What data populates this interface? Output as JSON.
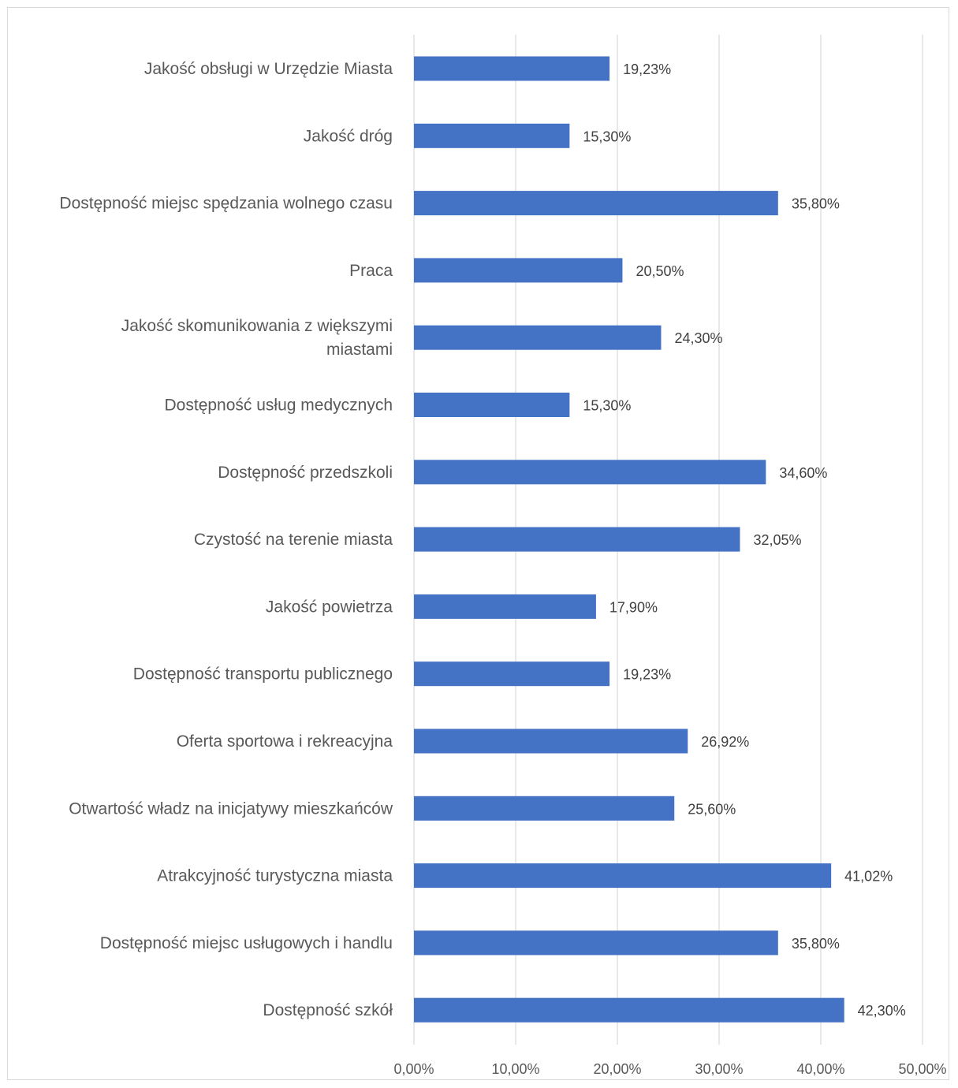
{
  "chart_data": {
    "type": "bar",
    "orientation": "horizontal",
    "categories": [
      [
        "Jakość obsługi w Urzędzie Miasta"
      ],
      [
        "Jakość dróg"
      ],
      [
        "Dostępność miejsc spędzania wolnego czasu"
      ],
      [
        "Praca"
      ],
      [
        "Jakość skomunikowania z większymi",
        "miastami"
      ],
      [
        "Dostępność usług medycznych"
      ],
      [
        "Dostępność przedszkoli"
      ],
      [
        "Czystość na terenie miasta"
      ],
      [
        "Jakość powietrza"
      ],
      [
        "Dostępność transportu publicznego"
      ],
      [
        "Oferta sportowa i rekreacyjna"
      ],
      [
        "Otwartość władz na inicjatywy mieszkańców"
      ],
      [
        "Atrakcyjność turystyczna miasta"
      ],
      [
        "Dostępność miejsc usługowych i handlu"
      ],
      [
        "Dostępność szkół"
      ]
    ],
    "values": [
      19.23,
      15.3,
      35.8,
      20.5,
      24.3,
      15.3,
      34.6,
      32.05,
      17.9,
      19.23,
      26.92,
      25.6,
      41.02,
      35.8,
      42.3
    ],
    "value_labels": [
      "19,23%",
      "15,30%",
      "35,80%",
      "20,50%",
      "24,30%",
      "15,30%",
      "34,60%",
      "32,05%",
      "17,90%",
      "19,23%",
      "26,92%",
      "25,60%",
      "41,02%",
      "35,80%",
      "42,30%"
    ],
    "x_ticks": [
      0,
      10,
      20,
      30,
      40,
      50
    ],
    "x_tick_labels": [
      "0,00%",
      "10,00%",
      "20,00%",
      "30,00%",
      "40,00%",
      "50,00%"
    ],
    "xlim": [
      0,
      50
    ],
    "grid": true,
    "legend": "none",
    "bar_color": "#4472c4",
    "grid_color": "#d9d9d9",
    "title": "",
    "xlabel": "",
    "ylabel": ""
  }
}
